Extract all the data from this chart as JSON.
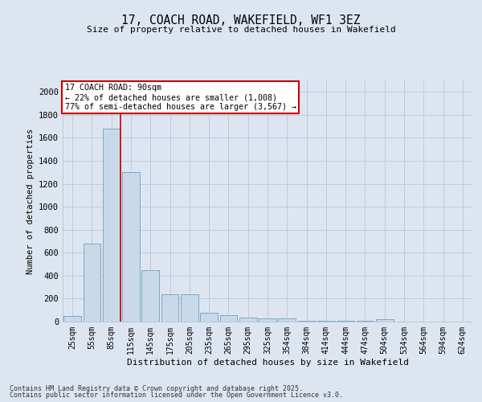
{
  "title": "17, COACH ROAD, WAKEFIELD, WF1 3EZ",
  "subtitle": "Size of property relative to detached houses in Wakefield",
  "xlabel": "Distribution of detached houses by size in Wakefield",
  "ylabel": "Number of detached properties",
  "categories": [
    "25sqm",
    "55sqm",
    "85sqm",
    "115sqm",
    "145sqm",
    "175sqm",
    "205sqm",
    "235sqm",
    "265sqm",
    "295sqm",
    "325sqm",
    "354sqm",
    "384sqm",
    "414sqm",
    "444sqm",
    "474sqm",
    "504sqm",
    "534sqm",
    "564sqm",
    "594sqm",
    "624sqm"
  ],
  "values": [
    50,
    680,
    1680,
    1300,
    450,
    240,
    240,
    80,
    55,
    35,
    25,
    25,
    10,
    8,
    5,
    5,
    18,
    3,
    2,
    2,
    1
  ],
  "bar_color": "#c9d9ea",
  "bar_edgecolor": "#7ea8c4",
  "red_line_index": 2,
  "annotation_line1": "17 COACH ROAD: 90sqm",
  "annotation_line2": "← 22% of detached houses are smaller (1,008)",
  "annotation_line3": "77% of semi-detached houses are larger (3,567) →",
  "annotation_box_edgecolor": "#cc0000",
  "red_line_color": "#cc0000",
  "ylim": [
    0,
    2100
  ],
  "yticks": [
    0,
    200,
    400,
    600,
    800,
    1000,
    1200,
    1400,
    1600,
    1800,
    2000
  ],
  "grid_color": "#b8c8d8",
  "background_color": "#dde6f0",
  "footer1": "Contains HM Land Registry data © Crown copyright and database right 2025.",
  "footer2": "Contains public sector information licensed under the Open Government Licence v3.0."
}
